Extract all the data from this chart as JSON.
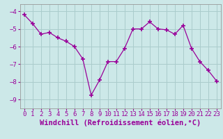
{
  "x": [
    0,
    1,
    2,
    3,
    4,
    5,
    6,
    7,
    8,
    9,
    10,
    11,
    12,
    13,
    14,
    15,
    16,
    17,
    18,
    19,
    20,
    21,
    22,
    23
  ],
  "y": [
    -4.2,
    -4.7,
    -5.3,
    -5.2,
    -5.5,
    -5.7,
    -6.0,
    -6.7,
    -8.75,
    -7.9,
    -6.85,
    -6.85,
    -6.1,
    -5.0,
    -5.0,
    -4.6,
    -5.0,
    -5.05,
    -5.3,
    -4.8,
    -6.1,
    -6.85,
    -7.35,
    -7.95
  ],
  "line_color": "#990099",
  "marker": "+",
  "marker_size": 4,
  "bg_color": "#cce8e8",
  "grid_color": "#aacccc",
  "xlabel": "Windchill (Refroidissement éolien,°C)",
  "ylim": [
    -9.5,
    -3.6
  ],
  "xlim": [
    -0.5,
    23.5
  ],
  "yticks": [
    -9,
    -8,
    -7,
    -6,
    -5,
    -4
  ],
  "tick_fontsize": 6.5,
  "xlabel_fontsize": 7.5
}
